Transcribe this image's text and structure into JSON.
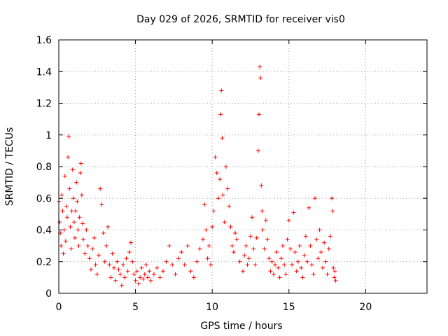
{
  "chart_data": {
    "type": "scatter",
    "title": "Day 029 of 2026, SRMTID for receiver vis0",
    "xlabel": "GPS time / hours",
    "ylabel": "SRMTID / TECUs",
    "xlim": [
      0,
      24
    ],
    "ylim": [
      0,
      1.6
    ],
    "xticks": [
      0,
      5,
      10,
      15,
      20
    ],
    "xtick_labels": [
      "0",
      "5",
      "10",
      "15",
      "20"
    ],
    "yticks": [
      0,
      0.2,
      0.4,
      0.6,
      0.8,
      1,
      1.2,
      1.4,
      1.6
    ],
    "ytick_labels": [
      "0",
      "0.2",
      "0.4",
      "0.6",
      "0.8",
      "1",
      "1.2",
      "1.4",
      "1.6"
    ],
    "grid": true,
    "marker": "plus",
    "color": "#ff0000",
    "series": [
      {
        "name": "SRMTID",
        "points": [
          [
            0.0,
            0.58
          ],
          [
            0.05,
            0.45
          ],
          [
            0.1,
            0.38
          ],
          [
            0.15,
            0.3
          ],
          [
            0.2,
            0.62
          ],
          [
            0.25,
            0.52
          ],
          [
            0.3,
            0.25
          ],
          [
            0.35,
            0.4
          ],
          [
            0.4,
            0.74
          ],
          [
            0.45,
            0.33
          ],
          [
            0.5,
            0.55
          ],
          [
            0.55,
            0.48
          ],
          [
            0.6,
            0.86
          ],
          [
            0.65,
            0.99
          ],
          [
            0.7,
            0.66
          ],
          [
            0.75,
            0.42
          ],
          [
            0.8,
            0.28
          ],
          [
            0.85,
            0.52
          ],
          [
            0.9,
            0.78
          ],
          [
            0.95,
            0.6
          ],
          [
            1.0,
            0.45
          ],
          [
            1.05,
            0.35
          ],
          [
            1.1,
            0.52
          ],
          [
            1.15,
            0.7
          ],
          [
            1.2,
            0.58
          ],
          [
            1.25,
            0.4
          ],
          [
            1.3,
            0.3
          ],
          [
            1.35,
            0.48
          ],
          [
            1.4,
            0.76
          ],
          [
            1.45,
            0.82
          ],
          [
            1.5,
            0.62
          ],
          [
            1.55,
            0.44
          ],
          [
            1.6,
            0.34
          ],
          [
            1.7,
            0.25
          ],
          [
            1.8,
            0.4
          ],
          [
            1.9,
            0.3
          ],
          [
            2.0,
            0.22
          ],
          [
            2.1,
            0.15
          ],
          [
            2.2,
            0.28
          ],
          [
            2.3,
            0.35
          ],
          [
            2.4,
            0.18
          ],
          [
            2.5,
            0.12
          ],
          [
            2.6,
            0.24
          ],
          [
            2.7,
            0.66
          ],
          [
            2.8,
            0.56
          ],
          [
            2.9,
            0.38
          ],
          [
            3.0,
            0.2
          ],
          [
            3.1,
            0.3
          ],
          [
            3.2,
            0.42
          ],
          [
            3.3,
            0.18
          ],
          [
            3.4,
            0.1
          ],
          [
            3.5,
            0.25
          ],
          [
            3.6,
            0.16
          ],
          [
            3.7,
            0.08
          ],
          [
            3.8,
            0.2
          ],
          [
            3.9,
            0.15
          ],
          [
            4.0,
            0.12
          ],
          [
            4.1,
            0.05
          ],
          [
            4.2,
            0.18
          ],
          [
            4.3,
            0.1
          ],
          [
            4.4,
            0.22
          ],
          [
            4.5,
            0.14
          ],
          [
            4.6,
            0.26
          ],
          [
            4.7,
            0.32
          ],
          [
            4.8,
            0.2
          ],
          [
            4.9,
            0.12
          ],
          [
            5.0,
            0.08
          ],
          [
            5.1,
            0.14
          ],
          [
            5.2,
            0.06
          ],
          [
            5.3,
            0.1
          ],
          [
            5.4,
            0.16
          ],
          [
            5.5,
            0.09
          ],
          [
            5.6,
            0.12
          ],
          [
            5.7,
            0.18
          ],
          [
            5.8,
            0.1
          ],
          [
            5.9,
            0.14
          ],
          [
            6.0,
            0.08
          ],
          [
            6.2,
            0.12
          ],
          [
            6.4,
            0.16
          ],
          [
            6.6,
            0.1
          ],
          [
            6.8,
            0.14
          ],
          [
            7.0,
            0.2
          ],
          [
            7.2,
            0.3
          ],
          [
            7.4,
            0.18
          ],
          [
            7.6,
            0.12
          ],
          [
            7.8,
            0.22
          ],
          [
            8.0,
            0.26
          ],
          [
            8.2,
            0.18
          ],
          [
            8.4,
            0.3
          ],
          [
            8.6,
            0.14
          ],
          [
            8.8,
            0.1
          ],
          [
            9.0,
            0.2
          ],
          [
            9.2,
            0.28
          ],
          [
            9.4,
            0.34
          ],
          [
            9.5,
            0.56
          ],
          [
            9.6,
            0.4
          ],
          [
            9.7,
            0.22
          ],
          [
            9.8,
            0.3
          ],
          [
            9.9,
            0.18
          ],
          [
            10.0,
            0.42
          ],
          [
            10.1,
            0.52
          ],
          [
            10.2,
            0.86
          ],
          [
            10.3,
            0.76
          ],
          [
            10.4,
            0.6
          ],
          [
            10.5,
            0.72
          ],
          [
            10.55,
            1.13
          ],
          [
            10.6,
            1.28
          ],
          [
            10.65,
            0.98
          ],
          [
            10.7,
            0.62
          ],
          [
            10.8,
            0.45
          ],
          [
            10.9,
            0.8
          ],
          [
            11.0,
            0.66
          ],
          [
            11.1,
            0.55
          ],
          [
            11.2,
            0.42
          ],
          [
            11.3,
            0.3
          ],
          [
            11.4,
            0.26
          ],
          [
            11.5,
            0.38
          ],
          [
            11.6,
            0.34
          ],
          [
            11.8,
            0.2
          ],
          [
            12.0,
            0.14
          ],
          [
            12.1,
            0.24
          ],
          [
            12.2,
            0.3
          ],
          [
            12.3,
            0.18
          ],
          [
            12.4,
            0.22
          ],
          [
            12.5,
            0.36
          ],
          [
            12.6,
            0.48
          ],
          [
            12.7,
            0.28
          ],
          [
            12.8,
            0.18
          ],
          [
            12.9,
            0.35
          ],
          [
            13.0,
            0.9
          ],
          [
            13.05,
            1.13
          ],
          [
            13.1,
            1.43
          ],
          [
            13.15,
            1.36
          ],
          [
            13.2,
            0.68
          ],
          [
            13.25,
            0.52
          ],
          [
            13.3,
            0.4
          ],
          [
            13.4,
            0.28
          ],
          [
            13.5,
            0.46
          ],
          [
            13.6,
            0.34
          ],
          [
            13.7,
            0.22
          ],
          [
            13.8,
            0.14
          ],
          [
            13.9,
            0.2
          ],
          [
            14.0,
            0.12
          ],
          [
            14.1,
            0.18
          ],
          [
            14.2,
            0.26
          ],
          [
            14.3,
            0.16
          ],
          [
            14.4,
            0.1
          ],
          [
            14.5,
            0.22
          ],
          [
            14.6,
            0.3
          ],
          [
            14.7,
            0.18
          ],
          [
            14.8,
            0.12
          ],
          [
            14.9,
            0.34
          ],
          [
            15.0,
            0.46
          ],
          [
            15.1,
            0.28
          ],
          [
            15.2,
            0.18
          ],
          [
            15.3,
            0.51
          ],
          [
            15.4,
            0.26
          ],
          [
            15.5,
            0.14
          ],
          [
            15.6,
            0.2
          ],
          [
            15.7,
            0.3
          ],
          [
            15.8,
            0.16
          ],
          [
            15.9,
            0.1
          ],
          [
            16.0,
            0.24
          ],
          [
            16.1,
            0.36
          ],
          [
            16.2,
            0.2
          ],
          [
            16.3,
            0.54
          ],
          [
            16.4,
            0.3
          ],
          [
            16.5,
            0.18
          ],
          [
            16.6,
            0.12
          ],
          [
            16.7,
            0.6
          ],
          [
            16.8,
            0.34
          ],
          [
            16.9,
            0.22
          ],
          [
            17.0,
            0.4
          ],
          [
            17.1,
            0.26
          ],
          [
            17.2,
            0.16
          ],
          [
            17.3,
            0.32
          ],
          [
            17.4,
            0.2
          ],
          [
            17.5,
            0.12
          ],
          [
            17.6,
            0.28
          ],
          [
            17.7,
            0.36
          ],
          [
            17.8,
            0.6
          ],
          [
            17.85,
            0.52
          ],
          [
            17.9,
            0.16
          ],
          [
            17.95,
            0.1
          ],
          [
            18.0,
            0.14
          ],
          [
            18.05,
            0.08
          ]
        ]
      }
    ]
  }
}
